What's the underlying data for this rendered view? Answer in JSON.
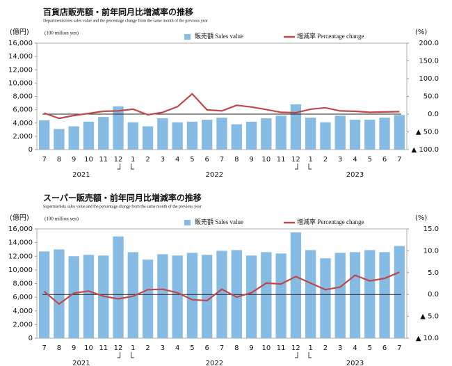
{
  "chart_data": [
    {
      "type": "bar_line",
      "title": "百貨店販売額・前年同月比増減率の推移",
      "subtitle": "Departmentstores sales value and the percentage change from the same month of the previous year",
      "y_label": "(億円)",
      "y_sublabel": "(100 million yen)",
      "y2_label": "(%)",
      "categories": [
        "7",
        "8",
        "9",
        "10",
        "11",
        "12",
        "1",
        "2",
        "3",
        "4",
        "5",
        "6",
        "7",
        "8",
        "9",
        "10",
        "11",
        "12",
        "1",
        "2",
        "3",
        "4",
        "5",
        "6",
        "7"
      ],
      "years": [
        "2021",
        "2022",
        "2023"
      ],
      "series": [
        {
          "name": "販売額 Sales value",
          "type": "bar",
          "color": "#86bbe3",
          "values": [
            4400,
            3100,
            3500,
            4200,
            4900,
            6500,
            4100,
            3500,
            4700,
            4100,
            4200,
            4500,
            4800,
            3800,
            4200,
            4700,
            5100,
            6800,
            4800,
            4100,
            5100,
            4500,
            4500,
            4800,
            5200
          ]
        },
        {
          "name": "増減率 Percentage change",
          "type": "line",
          "axis": "y2",
          "color": "#c0474a",
          "values": [
            3,
            -12,
            -4,
            2,
            8,
            9,
            14,
            -2,
            5,
            21,
            57,
            12,
            9,
            25,
            20,
            13,
            5,
            4,
            14,
            18,
            9,
            8,
            5,
            6,
            7
          ]
        }
      ],
      "ylim": [
        0,
        16000
      ],
      "yticks": [
        0,
        {
          "value": 2000,
          "label": "2,000"
        },
        {
          "value": 4000,
          "label": "4,000"
        },
        {
          "value": 6000,
          "label": "6,000"
        },
        {
          "value": 8000,
          "label": "8,000"
        },
        {
          "value": 10000,
          "label": "10,000"
        },
        {
          "value": 12000,
          "label": "12,000"
        },
        {
          "value": 14000,
          "label": "14,000"
        },
        {
          "value": 16000,
          "label": "16,000"
        }
      ],
      "y2lim": [
        -100,
        200
      ],
      "y2ticks": [
        {
          "value": -100,
          "label": "▲ 100.0"
        },
        {
          "value": -50,
          "label": "▲ 50.0"
        },
        {
          "value": 0,
          "label": "0.0"
        },
        {
          "value": 50,
          "label": "50.0"
        },
        {
          "value": 100,
          "label": "100.0"
        },
        {
          "value": 150,
          "label": "150.0"
        },
        {
          "value": 200,
          "label": "200.0"
        }
      ]
    },
    {
      "type": "bar_line",
      "title": "スーパー販売額・前年同月比増減率の推移",
      "subtitle": "Supermarkets sales value and the percentage change from the same month of the previous year",
      "y_label": "(億円)",
      "y_sublabel": "(100 million yen)",
      "y2_label": "(%)",
      "categories": [
        "7",
        "8",
        "9",
        "10",
        "11",
        "12",
        "1",
        "2",
        "3",
        "4",
        "5",
        "6",
        "7",
        "8",
        "9",
        "10",
        "11",
        "12",
        "1",
        "2",
        "3",
        "4",
        "5",
        "6",
        "7"
      ],
      "years": [
        "2021",
        "2022",
        "2023"
      ],
      "series": [
        {
          "name": "販売額 Sales value",
          "type": "bar",
          "color": "#86bbe3",
          "values": [
            12700,
            13000,
            12000,
            12200,
            12100,
            14900,
            12600,
            11500,
            12300,
            12100,
            12500,
            12200,
            12800,
            12900,
            12100,
            12600,
            12400,
            15500,
            12900,
            11700,
            12500,
            12600,
            12900,
            12600,
            13500
          ]
        },
        {
          "name": "増減率 Percentage change",
          "type": "line",
          "axis": "y2",
          "color": "#c0474a",
          "values": [
            0.7,
            -2.2,
            0.3,
            0.8,
            -0.4,
            -1.0,
            -0.4,
            1.1,
            1.2,
            0.4,
            -1.2,
            -1.4,
            1.2,
            -0.6,
            0.4,
            2.6,
            2.4,
            4.1,
            2.6,
            1.1,
            1.7,
            4.4,
            3.1,
            3.7,
            5.1
          ]
        }
      ],
      "ylim": [
        0,
        16000
      ],
      "yticks": [
        0,
        {
          "value": 2000,
          "label": "2,000"
        },
        {
          "value": 4000,
          "label": "4,000"
        },
        {
          "value": 6000,
          "label": "6,000"
        },
        {
          "value": 8000,
          "label": "8,000"
        },
        {
          "value": 10000,
          "label": "10,000"
        },
        {
          "value": 12000,
          "label": "12,000"
        },
        {
          "value": 14000,
          "label": "14,000"
        },
        {
          "value": 16000,
          "label": "16,000"
        }
      ],
      "y2lim": [
        -10,
        15
      ],
      "y2ticks": [
        {
          "value": -10,
          "label": "▲ 10.0"
        },
        {
          "value": -5,
          "label": "▲ 5.0"
        },
        {
          "value": 0,
          "label": "0.0"
        },
        {
          "value": 5,
          "label": "5.0"
        },
        {
          "value": 10,
          "label": "10.0"
        },
        {
          "value": 15,
          "label": "15.0"
        }
      ]
    }
  ]
}
